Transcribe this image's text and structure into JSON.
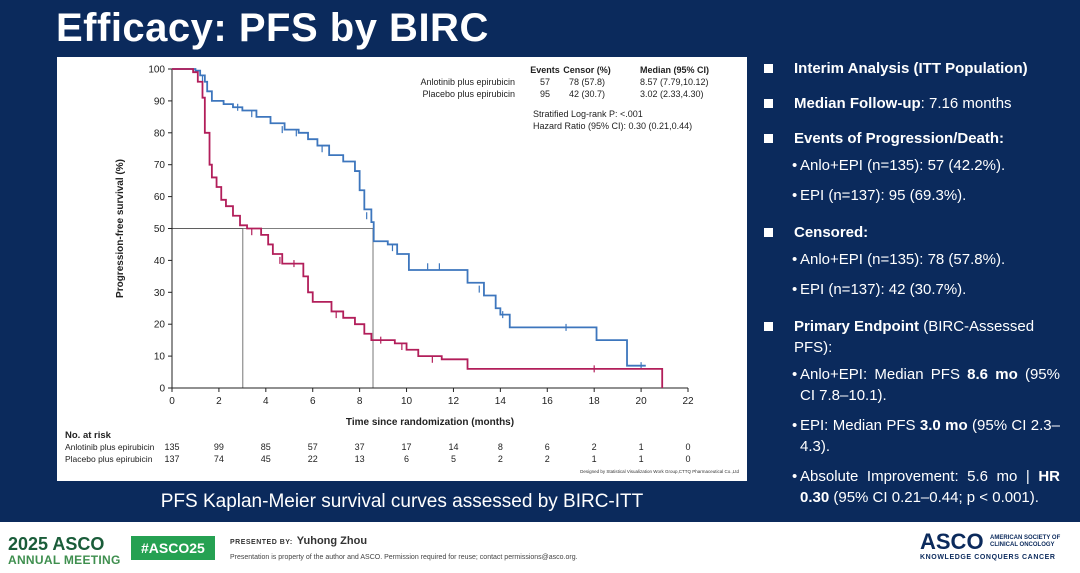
{
  "slide": {
    "title": "Efficacy: PFS by BIRC",
    "caption": "PFS Kaplan-Meier survival curves assessed by BIRC-ITT"
  },
  "colors": {
    "background": "#0b2a5c",
    "anlotinib_curve": "#3d76bd",
    "placebo_curve": "#b21e5a",
    "footer_green": "#25a152"
  },
  "chart_data": {
    "type": "line",
    "xlabel": "Time since randomization (months)",
    "ylabel": "Progression-free survival (%)",
    "xlim": [
      0,
      22
    ],
    "ylim": [
      0,
      100
    ],
    "xticks": [
      0,
      2,
      4,
      6,
      8,
      10,
      12,
      14,
      16,
      18,
      20,
      22
    ],
    "yticks": [
      0,
      10,
      20,
      30,
      40,
      50,
      60,
      70,
      80,
      90,
      100
    ],
    "series": [
      {
        "name": "Anlotinib plus epirubicin",
        "color": "#3d76bd",
        "points": [
          [
            0,
            100
          ],
          [
            1.0,
            99.5
          ],
          [
            1.2,
            98
          ],
          [
            1.4,
            96
          ],
          [
            1.5,
            93
          ],
          [
            1.7,
            90
          ],
          [
            2.2,
            89
          ],
          [
            2.6,
            88
          ],
          [
            3.0,
            87
          ],
          [
            3.6,
            85
          ],
          [
            4.2,
            83
          ],
          [
            4.8,
            81
          ],
          [
            5.4,
            80
          ],
          [
            5.8,
            78
          ],
          [
            6.2,
            76
          ],
          [
            6.7,
            73
          ],
          [
            7.3,
            71
          ],
          [
            7.8,
            68
          ],
          [
            8.0,
            62
          ],
          [
            8.2,
            56
          ],
          [
            8.5,
            52
          ],
          [
            8.6,
            46
          ],
          [
            9.2,
            45
          ],
          [
            9.6,
            42
          ],
          [
            10.1,
            37
          ],
          [
            12.6,
            33
          ],
          [
            13.3,
            29
          ],
          [
            13.8,
            25
          ],
          [
            14.0,
            23
          ],
          [
            14.4,
            19
          ],
          [
            18.1,
            15
          ],
          [
            19.4,
            7
          ],
          [
            20.2,
            7
          ]
        ],
        "censor": [
          [
            1.3,
            97
          ],
          [
            2.8,
            88
          ],
          [
            3.4,
            86
          ],
          [
            4.7,
            81
          ],
          [
            5.3,
            80
          ],
          [
            6.4,
            75
          ],
          [
            8.3,
            54
          ],
          [
            9.4,
            44
          ],
          [
            10.9,
            38
          ],
          [
            11.4,
            38
          ],
          [
            13.1,
            31
          ],
          [
            14.1,
            23
          ],
          [
            16.8,
            19
          ],
          [
            20.0,
            7
          ]
        ]
      },
      {
        "name": "Placebo plus epirubicin",
        "color": "#b21e5a",
        "points": [
          [
            0,
            100
          ],
          [
            0.9,
            99
          ],
          [
            1.1,
            96
          ],
          [
            1.3,
            91
          ],
          [
            1.4,
            80
          ],
          [
            1.6,
            70
          ],
          [
            1.7,
            66
          ],
          [
            1.9,
            63
          ],
          [
            2.1,
            59
          ],
          [
            2.3,
            57
          ],
          [
            2.6,
            54
          ],
          [
            2.9,
            51
          ],
          [
            3.2,
            50
          ],
          [
            3.8,
            48
          ],
          [
            4.1,
            45
          ],
          [
            4.3,
            42
          ],
          [
            4.7,
            39
          ],
          [
            5.6,
            35
          ],
          [
            5.8,
            30
          ],
          [
            6.0,
            27
          ],
          [
            6.8,
            24
          ],
          [
            7.3,
            22
          ],
          [
            7.8,
            20
          ],
          [
            8.2,
            17
          ],
          [
            8.5,
            15
          ],
          [
            9.5,
            14
          ],
          [
            10.0,
            12
          ],
          [
            10.5,
            10
          ],
          [
            11.5,
            9
          ],
          [
            12.6,
            6
          ],
          [
            20.9,
            6
          ],
          [
            20.9,
            0
          ]
        ],
        "censor": [
          [
            3.4,
            49
          ],
          [
            4.6,
            40
          ],
          [
            5.2,
            39
          ],
          [
            7.0,
            23
          ],
          [
            8.9,
            15
          ],
          [
            9.8,
            13
          ],
          [
            11.1,
            9
          ],
          [
            18.0,
            6
          ]
        ]
      }
    ],
    "median_lines": [
      {
        "x": 3.02,
        "y": 50
      },
      {
        "x": 8.57,
        "y": 50
      }
    ],
    "legend_table": {
      "headers": [
        "",
        "Events",
        "Censor (%)",
        "Median (95% CI)"
      ],
      "rows": [
        [
          "Anlotinib plus epirubicin",
          "57",
          "78 (57.8)",
          "8.57 (7.79,10.12)"
        ],
        [
          "Placebo plus epirubicin",
          "95",
          "42 (30.7)",
          "3.02 (2.33,4.30)"
        ]
      ],
      "stats": [
        "Stratified Log-rank P: <.001",
        "Hazard Ratio (95% CI): 0.30 (0.21,0.44)"
      ]
    },
    "risk_table": {
      "title": "No. at risk",
      "rows": [
        {
          "label": "Anlotinib plus epirubicin",
          "values": [
            135,
            99,
            85,
            57,
            37,
            17,
            14,
            8,
            6,
            2,
            1,
            0
          ]
        },
        {
          "label": "Placebo plus epirubicin",
          "values": [
            137,
            74,
            45,
            22,
            13,
            6,
            5,
            2,
            2,
            1,
            1,
            0
          ]
        }
      ]
    },
    "credit": "Designed by Statistical Visualization Work Group,CTTQ Pharmaceutical Co.,Ltd"
  },
  "bullets": {
    "interim": "Interim Analysis (ITT Population)",
    "followup_label": "Median Follow-up",
    "followup_value": ": 7.16 months",
    "events_label": "Events of Progression/Death:",
    "events_anlo": "Anlo+EPI (n=135): 57 (42.2%).",
    "events_epi": "EPI (n=137): 95 (69.3%).",
    "censored_label": "Censored:",
    "censored_anlo": "Anlo+EPI (n=135): 78 (57.8%).",
    "censored_epi": "EPI (n=137): 42 (30.7%).",
    "primary_label": "Primary Endpoint",
    "primary_rest": " (BIRC-Assessed PFS):",
    "anlo_median_a": "Anlo+EPI: Median PFS ",
    "anlo_median_b": "8.6 mo",
    "anlo_median_c": " (95% CI 7.8–10.1).",
    "epi_median_a": "EPI: Median PFS ",
    "epi_median_b": "3.0 mo",
    "epi_median_c": " (95% CI 2.3–4.3).",
    "abs_a": "Absolute Improvement: 5.6 mo | ",
    "abs_b": "HR 0.30",
    "abs_c": " (95% CI 0.21–0.44; p < 0.001)."
  },
  "footer": {
    "meeting_top": "2025 ASCO",
    "meeting_bottom": "ANNUAL MEETING",
    "hashtag": "#ASCO25",
    "presented_by": "PRESENTED BY:",
    "presenter": "Yuhong Zhou",
    "notice": "Presentation is property of the author and ASCO. Permission required for reuse; contact permissions@asco.org.",
    "logo": "ASCO",
    "society": "AMERICAN SOCIETY OF CLINICAL ONCOLOGY",
    "tagline": "KNOWLEDGE CONQUERS CANCER"
  }
}
